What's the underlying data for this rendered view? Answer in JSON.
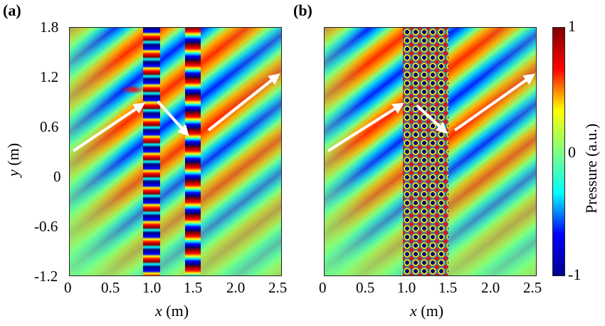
{
  "panels": [
    {
      "label": "(a)",
      "xlabel_var": "x",
      "xlabel_unit": "(m)",
      "ylabel_var": "y",
      "ylabel_unit": "(m)",
      "xticks": [
        "0",
        "0.5",
        "1.0",
        "1.5",
        "2.0",
        "2.5"
      ],
      "yticks": [
        "1.8",
        "1.2",
        "0.6",
        "0",
        "-0.6",
        "-1.2"
      ]
    },
    {
      "label": "(b)",
      "xlabel_var": "x",
      "xlabel_unit": "(m)",
      "xticks": [
        "0",
        "0.5",
        "1.0",
        "1.5",
        "2.0",
        "2.5"
      ]
    }
  ],
  "colorbar": {
    "title": "Pressure (a.u.)",
    "max_label": "1",
    "mid_label": "0",
    "min_label": "-1",
    "colormap": [
      "#00008f",
      "#0000ff",
      "#00ffff",
      "#7fff7f",
      "#ffff00",
      "#ff0000",
      "#800000"
    ]
  },
  "chart_data": [
    {
      "type": "heatmap",
      "xlim": [
        0,
        2.5
      ],
      "ylim": [
        -1.2,
        1.8
      ],
      "value_range": [
        -1,
        1
      ],
      "arrows": [
        {
          "from": [
            0.05,
            0.3
          ],
          "to": [
            0.85,
            0.85
          ]
        },
        {
          "from": [
            1.05,
            0.9
          ],
          "to": [
            1.38,
            0.52
          ]
        },
        {
          "from": [
            1.65,
            0.55
          ],
          "to": [
            2.45,
            1.2
          ]
        }
      ],
      "scatterer_columns_x": [
        1.0,
        1.5
      ]
    },
    {
      "type": "heatmap",
      "xlim": [
        0,
        2.5
      ],
      "ylim": [
        -1.2,
        1.8
      ],
      "value_range": [
        -1,
        1
      ],
      "arrows": [
        {
          "from": [
            0.05,
            0.3
          ],
          "to": [
            0.9,
            0.85
          ]
        },
        {
          "from": [
            1.1,
            0.85
          ],
          "to": [
            1.42,
            0.55
          ]
        },
        {
          "from": [
            1.55,
            0.55
          ],
          "to": [
            2.45,
            1.2
          ]
        }
      ],
      "metamaterial_band_x": [
        0.95,
        1.45
      ]
    }
  ]
}
